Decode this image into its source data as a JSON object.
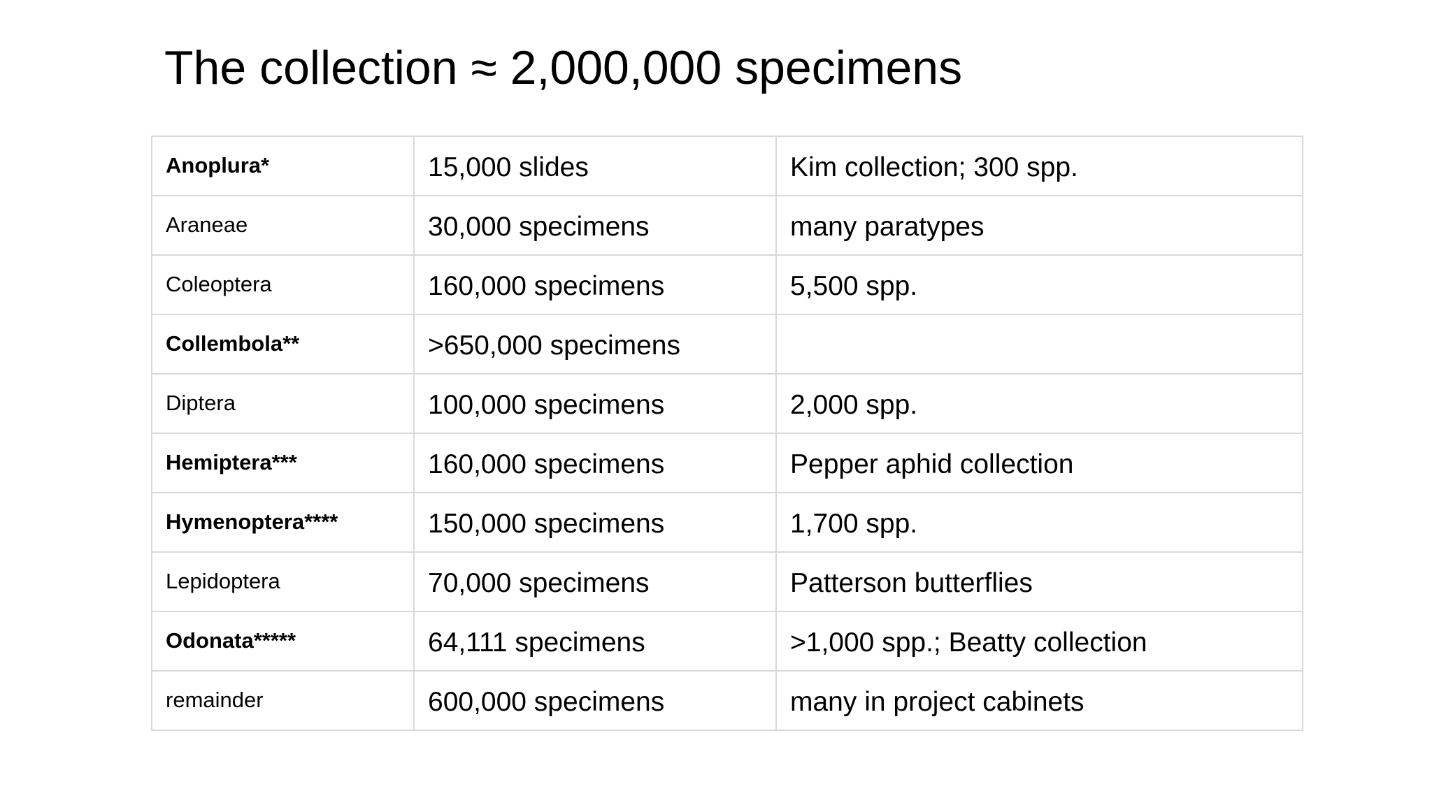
{
  "slide": {
    "title": "The collection ≈ 2,000,000 specimens"
  },
  "table": {
    "rows": [
      {
        "order": "Anoplura*",
        "bold": true,
        "count": "15,000 slides",
        "note": "Kim collection; 300 spp."
      },
      {
        "order": "Araneae",
        "bold": false,
        "count": "30,000 specimens",
        "note": "many paratypes"
      },
      {
        "order": "Coleoptera",
        "bold": false,
        "count": "160,000 specimens",
        "note": "5,500 spp."
      },
      {
        "order": "Collembola**",
        "bold": true,
        "count": ">650,000 specimens",
        "note": ""
      },
      {
        "order": "Diptera",
        "bold": false,
        "count": "100,000 specimens",
        "note": "2,000 spp."
      },
      {
        "order": "Hemiptera***",
        "bold": true,
        "count": "160,000 specimens",
        "note": "Pepper aphid collection"
      },
      {
        "order": "Hymenoptera****",
        "bold": true,
        "count": "150,000 specimens",
        "note": "1,700 spp."
      },
      {
        "order": "Lepidoptera",
        "bold": false,
        "count": "70,000 specimens",
        "note": "Patterson butterflies"
      },
      {
        "order": "Odonata*****",
        "bold": true,
        "count": "64,111 specimens",
        "note": ">1,000 spp.; Beatty collection"
      },
      {
        "order": "remainder",
        "bold": false,
        "count": "600,000 specimens",
        "note": "many in project cabinets"
      }
    ]
  },
  "colors": {
    "background": "#ffffff",
    "text": "#000000",
    "table_border": "#d9d9d9"
  }
}
